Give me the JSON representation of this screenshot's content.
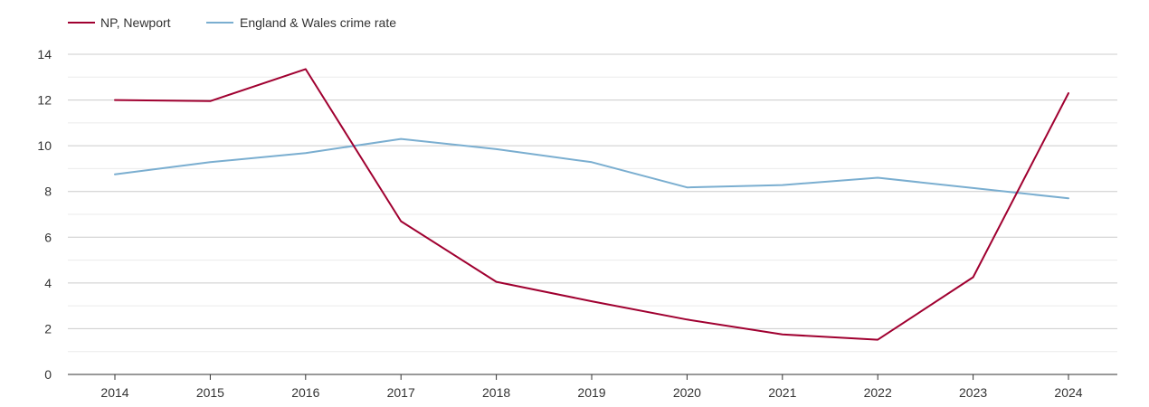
{
  "chart_data": {
    "type": "line",
    "title": "",
    "xlabel": "",
    "ylabel": "",
    "categories": [
      "2014",
      "2015",
      "2016",
      "2017",
      "2018",
      "2019",
      "2020",
      "2021",
      "2022",
      "2023",
      "2024"
    ],
    "ylim": [
      0,
      14
    ],
    "yticks": [
      0,
      2,
      4,
      6,
      8,
      10,
      12,
      14
    ],
    "grid": true,
    "legend": "top-left",
    "series": [
      {
        "name": "NP, Newport",
        "color": "#a00030",
        "values": [
          12.0,
          11.95,
          13.35,
          6.7,
          4.05,
          3.2,
          2.4,
          1.75,
          1.52,
          4.25,
          12.3
        ]
      },
      {
        "name": "England & Wales crime rate",
        "color": "#7aaed0",
        "values": [
          8.75,
          9.28,
          9.68,
          10.3,
          9.85,
          9.28,
          8.18,
          8.28,
          8.6,
          8.15,
          7.7
        ]
      }
    ]
  }
}
